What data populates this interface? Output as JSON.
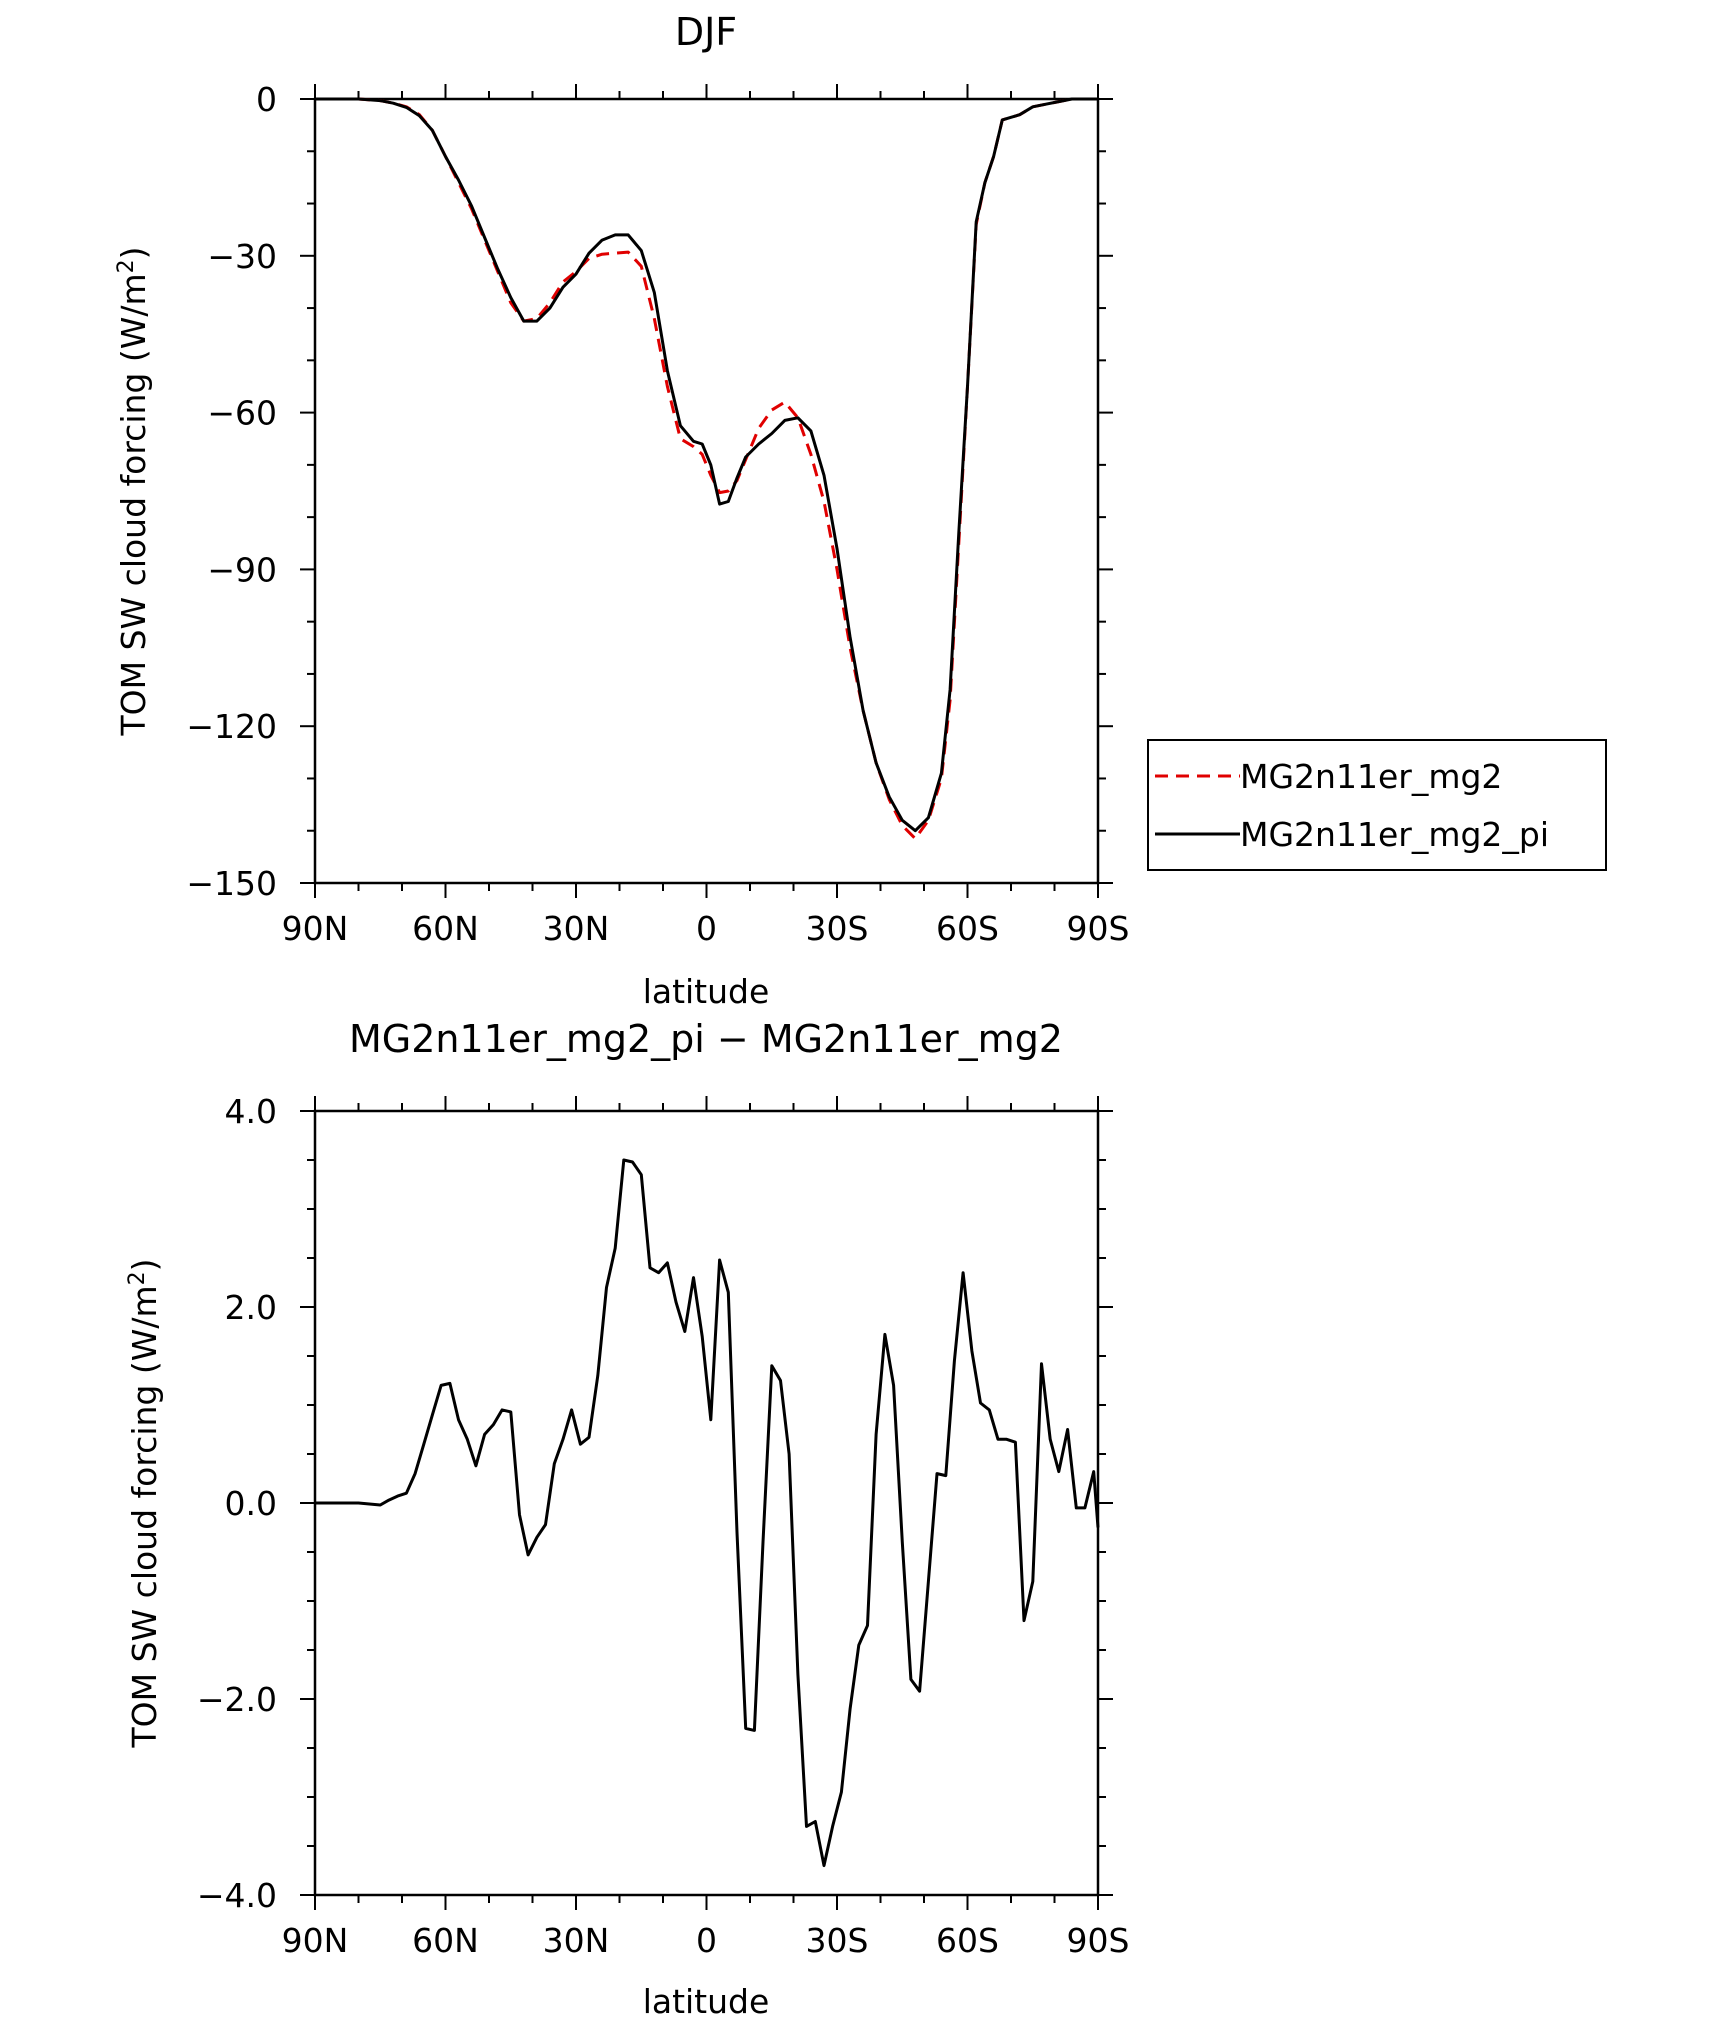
{
  "chart_data": [
    {
      "type": "line",
      "title": "DJF",
      "xlabel": "latitude",
      "ylabel": "TOM SW cloud forcing (W/m",
      "ylabel_sup": "2",
      "ylabel_close": ")",
      "xlim": [
        90,
        -90
      ],
      "ylim": [
        -150,
        0
      ],
      "x_ticks": [
        {
          "value": 90,
          "label": "90N"
        },
        {
          "value": 60,
          "label": "60N"
        },
        {
          "value": 30,
          "label": "30N"
        },
        {
          "value": 0,
          "label": "0"
        },
        {
          "value": -30,
          "label": "30S"
        },
        {
          "value": -60,
          "label": "60S"
        },
        {
          "value": -90,
          "label": "90S"
        }
      ],
      "y_ticks": [
        {
          "value": 0,
          "label": "0"
        },
        {
          "value": -30,
          "label": "−30"
        },
        {
          "value": -60,
          "label": "−60"
        },
        {
          "value": -90,
          "label": "−90"
        },
        {
          "value": -120,
          "label": "−120"
        },
        {
          "value": -150,
          "label": "−150"
        }
      ],
      "legend_position": "right",
      "series": [
        {
          "name": "MG2n11er_mg2",
          "color": "#e00000",
          "dash": "dashed",
          "x": [
            90,
            85,
            80,
            75,
            72,
            69,
            66,
            63,
            60,
            57,
            54,
            51,
            48,
            45,
            42,
            39,
            36,
            33,
            30,
            27,
            24,
            21,
            18,
            15,
            12,
            9,
            6,
            3,
            1,
            -1,
            -3,
            -5,
            -7,
            -9,
            -12,
            -15,
            -18,
            -21,
            -24,
            -27,
            -30,
            -33,
            -36,
            -39,
            -42,
            -45,
            -48,
            -51,
            -54,
            -56,
            -58,
            -60,
            -62,
            -64,
            -66,
            -68,
            -70,
            -72,
            -75,
            -78,
            -81,
            -84,
            -87,
            -90
          ],
          "y": [
            0,
            0,
            0,
            -0.3,
            -0.8,
            -1.5,
            -3,
            -6,
            -11,
            -16,
            -21,
            -27,
            -33,
            -39,
            -42.5,
            -42,
            -39,
            -35,
            -33,
            -30.5,
            -29.7,
            -29.5,
            -29.3,
            -32,
            -42,
            -55,
            -65,
            -66.5,
            -68,
            -72,
            -75.3,
            -75,
            -73,
            -69,
            -63,
            -59.5,
            -58,
            -61,
            -68,
            -77,
            -90,
            -105,
            -117,
            -127,
            -134,
            -139,
            -141.5,
            -138,
            -130,
            -115,
            -85,
            -55,
            -24,
            -16,
            -11,
            -4,
            -3.5,
            -3,
            -1.5,
            -1,
            -0.5,
            0,
            0,
            0
          ]
        },
        {
          "name": "MG2n11er_mg2_pi",
          "color": "#000000",
          "dash": "solid",
          "x": [
            90,
            85,
            80,
            75,
            72,
            69,
            66,
            63,
            60,
            57,
            54,
            51,
            48,
            45,
            42,
            39,
            36,
            33,
            30,
            27,
            24,
            21,
            18,
            15,
            12,
            9,
            6,
            3,
            1,
            -1,
            -3,
            -5,
            -7,
            -9,
            -12,
            -15,
            -18,
            -21,
            -24,
            -27,
            -30,
            -33,
            -36,
            -39,
            -42,
            -45,
            -48,
            -51,
            -54,
            -56,
            -58,
            -60,
            -62,
            -64,
            -66,
            -68,
            -70,
            -72,
            -75,
            -78,
            -81,
            -84,
            -87,
            -90
          ],
          "y": [
            0,
            0,
            0,
            -0.3,
            -0.8,
            -1.6,
            -3.2,
            -6,
            -11,
            -15.5,
            -20.5,
            -26.5,
            -32.5,
            -38,
            -42.5,
            -42.5,
            -40,
            -36,
            -33.5,
            -29.5,
            -27,
            -26,
            -26,
            -29,
            -37,
            -52,
            -62.5,
            -65.5,
            -66,
            -70,
            -77.5,
            -77,
            -72.5,
            -68.5,
            -66,
            -64,
            -61.5,
            -61,
            -63.5,
            -72,
            -86,
            -103,
            -117,
            -127,
            -133.5,
            -138,
            -140,
            -137.5,
            -129,
            -113,
            -83,
            -55,
            -23.5,
            -16,
            -11,
            -4,
            -3.5,
            -3,
            -1.5,
            -1,
            -0.5,
            0,
            0,
            0
          ]
        }
      ]
    },
    {
      "type": "line",
      "title": "MG2n11er_mg2_pi − MG2n11er_mg2",
      "xlabel": "latitude",
      "ylabel": "TOM SW cloud forcing (W/m",
      "ylabel_sup": "2",
      "ylabel_close": ")",
      "xlim": [
        90,
        -90
      ],
      "ylim": [
        -4,
        4
      ],
      "x_ticks": [
        {
          "value": 90,
          "label": "90N"
        },
        {
          "value": 60,
          "label": "60N"
        },
        {
          "value": 30,
          "label": "30N"
        },
        {
          "value": 0,
          "label": "0"
        },
        {
          "value": -30,
          "label": "30S"
        },
        {
          "value": -60,
          "label": "60S"
        },
        {
          "value": -90,
          "label": "90S"
        }
      ],
      "y_ticks": [
        {
          "value": 4,
          "label": "4.0"
        },
        {
          "value": 2,
          "label": "2.0"
        },
        {
          "value": 0,
          "label": "0.0"
        },
        {
          "value": -2,
          "label": "−2.0"
        },
        {
          "value": -4,
          "label": "−4.0"
        }
      ],
      "series": [
        {
          "color": "#000000",
          "dash": "solid",
          "x": [
            90,
            85,
            80,
            75,
            73,
            71,
            69,
            67,
            65,
            63,
            61,
            59,
            57,
            55,
            53,
            51,
            49,
            47,
            45,
            43,
            41,
            39,
            37,
            35,
            33,
            31,
            29,
            27,
            25,
            23,
            21,
            19,
            17,
            15,
            13,
            11,
            9,
            7,
            5,
            3,
            1,
            -1,
            -3,
            -5,
            -7,
            -9,
            -11,
            -13,
            -15,
            -17,
            -19,
            -21,
            -23,
            -25,
            -27,
            -29,
            -31,
            -33,
            -35,
            -37,
            -39,
            -41,
            -43,
            -45,
            -47,
            -49,
            -51,
            -53,
            -55,
            -57,
            -59,
            -61,
            -63,
            -65,
            -67,
            -69,
            -71,
            -73,
            -75,
            -77,
            -79,
            -81,
            -83,
            -85,
            -87,
            -89,
            -90
          ],
          "y": [
            0,
            0,
            0,
            -0.02,
            0.03,
            0.07,
            0.1,
            0.3,
            0.6,
            0.9,
            1.2,
            1.22,
            0.85,
            0.65,
            0.38,
            0.7,
            0.8,
            0.95,
            0.93,
            -0.12,
            -0.53,
            -0.35,
            -0.22,
            0.4,
            0.65,
            0.95,
            0.6,
            0.67,
            1.3,
            2.2,
            2.6,
            3.5,
            3.48,
            3.35,
            2.4,
            2.35,
            2.45,
            2.05,
            1.75,
            2.3,
            1.7,
            0.85,
            2.48,
            2.15,
            -0.3,
            -2.3,
            -2.32,
            -0.4,
            1.4,
            1.25,
            0.5,
            -1.75,
            -3.3,
            -3.25,
            -3.7,
            -3.3,
            -2.95,
            -2.1,
            -1.45,
            -1.25,
            0.7,
            1.72,
            1.2,
            -0.4,
            -1.8,
            -1.92,
            -0.8,
            0.3,
            0.28,
            1.45,
            2.35,
            1.55,
            1.02,
            0.95,
            0.65,
            0.65,
            0.62,
            -1.2,
            -0.8,
            1.42,
            0.65,
            0.32,
            0.75,
            -0.05,
            -0.05,
            0.32,
            -0.25
          ]
        }
      ]
    }
  ]
}
